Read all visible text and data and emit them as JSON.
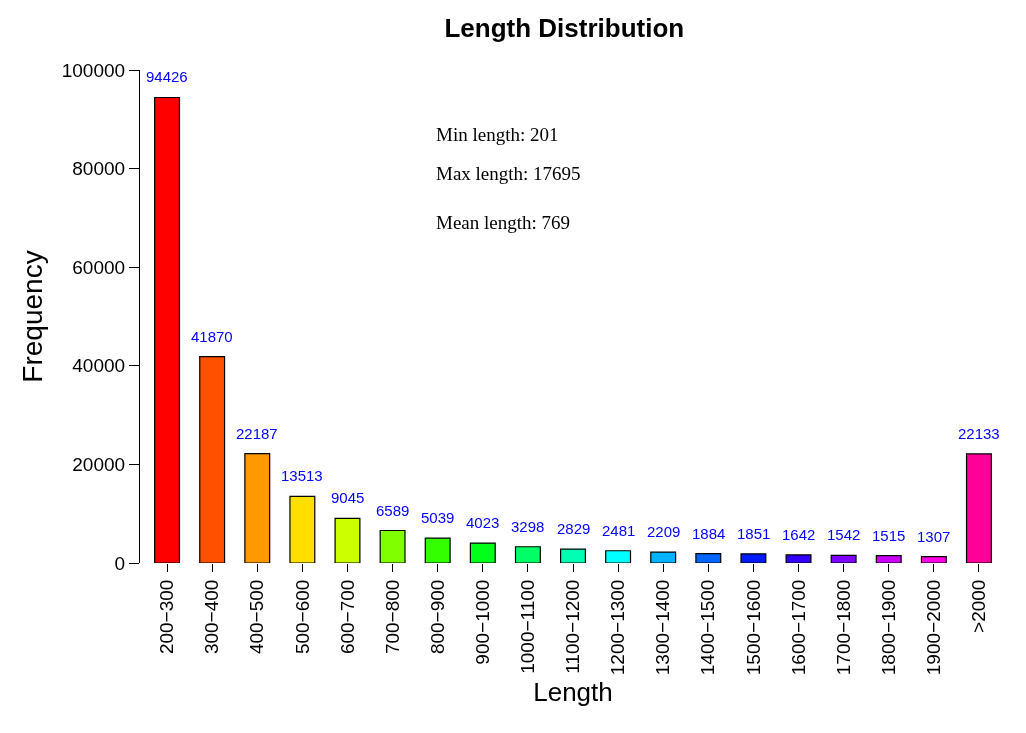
{
  "chart_data": {
    "type": "bar",
    "title": "Length Distribution",
    "xlabel": "Length",
    "ylabel": "Frequency",
    "categories": [
      "200−300",
      "300−400",
      "400−500",
      "500−600",
      "600−700",
      "700−800",
      "800−900",
      "900−1000",
      "1000−1100",
      "1100−1200",
      "1200−1300",
      "1300−1400",
      "1400−1500",
      "1500−1600",
      "1600−1700",
      "1700−1800",
      "1800−1900",
      "1900−2000",
      ">2000"
    ],
    "values": [
      94426,
      41870,
      22187,
      13513,
      9045,
      6589,
      5039,
      4023,
      3298,
      2829,
      2481,
      2209,
      1884,
      1851,
      1642,
      1542,
      1515,
      1307,
      22133
    ],
    "colors": [
      "#ff0000",
      "#ff5000",
      "#ff9900",
      "#ffdf00",
      "#ccff00",
      "#80ff00",
      "#33ff00",
      "#00ff19",
      "#00ff66",
      "#00ffb2",
      "#00ffff",
      "#00b3ff",
      "#0066ff",
      "#001aff",
      "#3300ff",
      "#7f00ff",
      "#cc00ff",
      "#ff00e6",
      "#ff0099"
    ],
    "ylim": [
      0,
      100000
    ],
    "yticks": [
      0,
      20000,
      40000,
      60000,
      80000,
      100000
    ],
    "data_labels": true,
    "annotations": [
      "Min length: 201",
      "Max length: 17695",
      "Mean length: 769"
    ]
  }
}
